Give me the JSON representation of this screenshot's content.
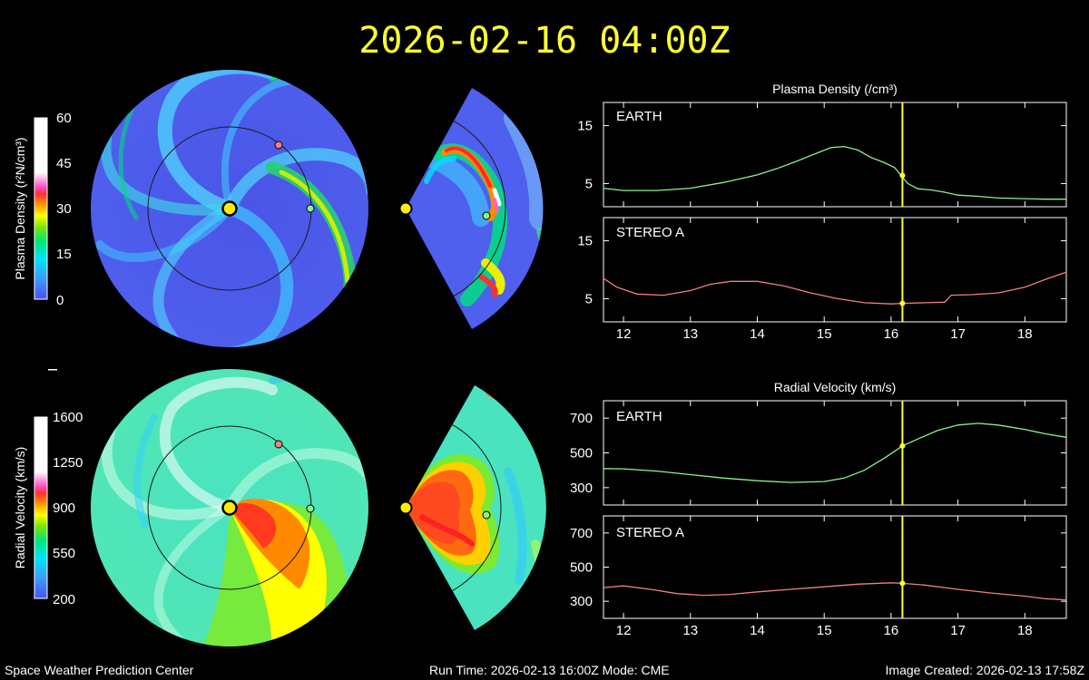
{
  "header": {
    "title": "2026-02-16 04:00Z"
  },
  "footer": {
    "center_name": "Space Weather Prediction Center",
    "run_time": "Run Time: 2026-02-13 16:00Z  Mode: CME",
    "image_created": "Image Created: 2026-02-13 17:58Z"
  },
  "colorbars": {
    "density": {
      "label": "Plasma Density (r²N/cm³)",
      "ticks": [
        "60",
        "45",
        "30",
        "15",
        "0"
      ]
    },
    "velocity": {
      "label": "Radial Velocity (km/s)",
      "ticks": [
        "1600",
        "1250",
        "900",
        "550",
        "200"
      ]
    }
  },
  "colors": {
    "earth_line": "#8cf28c",
    "stereo_line": "#f08080",
    "now_marker": "#ffff33",
    "title": "#ffff33"
  },
  "chart_data": [
    {
      "type": "line",
      "group_title": "Plasma Density (/cm³)",
      "panel_label": "EARTH",
      "x": [
        11.7,
        12.0,
        12.5,
        13.0,
        13.5,
        14.0,
        14.3,
        14.6,
        14.9,
        15.1,
        15.3,
        15.5,
        15.7,
        15.9,
        16.05,
        16.15,
        16.25,
        16.4,
        16.6,
        16.8,
        17.0,
        17.3,
        17.6,
        18.0,
        18.3,
        18.62
      ],
      "y": [
        4.2,
        3.8,
        3.8,
        4.2,
        5.2,
        6.5,
        7.6,
        8.9,
        10.3,
        11.2,
        11.4,
        10.8,
        9.5,
        8.6,
        7.8,
        6.4,
        5.0,
        4.1,
        3.9,
        3.5,
        3.0,
        2.8,
        2.5,
        2.4,
        2.3,
        2.3
      ],
      "yticks": [
        5,
        15
      ],
      "ylim": [
        1,
        19
      ],
      "xlim": [
        11.7,
        18.62
      ],
      "current_x": 16.17,
      "current_y": 6.4
    },
    {
      "type": "line",
      "panel_label": "STEREO A",
      "x": [
        11.7,
        11.9,
        12.2,
        12.6,
        13.0,
        13.3,
        13.6,
        14.0,
        14.4,
        14.8,
        15.2,
        15.6,
        16.0,
        16.17,
        16.5,
        16.8,
        16.9,
        17.2,
        17.6,
        18.0,
        18.3,
        18.62
      ],
      "y": [
        8.5,
        7.0,
        5.8,
        5.6,
        6.4,
        7.5,
        8.0,
        8.0,
        7.2,
        6.0,
        5.0,
        4.3,
        4.1,
        4.2,
        4.3,
        4.4,
        5.6,
        5.7,
        6.0,
        7.0,
        8.3,
        9.6
      ],
      "yticks": [
        5,
        15
      ],
      "ylim": [
        1,
        19
      ],
      "xlim": [
        11.7,
        18.62
      ],
      "current_x": 16.17,
      "current_y": 4.2
    },
    {
      "type": "line",
      "group_title": "Radial Velocity (km/s)",
      "panel_label": "EARTH",
      "x": [
        11.7,
        12.0,
        12.5,
        13.0,
        13.5,
        14.0,
        14.5,
        15.0,
        15.3,
        15.6,
        15.9,
        16.17,
        16.4,
        16.7,
        17.0,
        17.3,
        17.6,
        18.0,
        18.3,
        18.62
      ],
      "y": [
        410,
        408,
        395,
        375,
        355,
        340,
        330,
        335,
        355,
        400,
        470,
        540,
        580,
        630,
        660,
        670,
        660,
        635,
        610,
        590
      ],
      "yticks": [
        300,
        500,
        700
      ],
      "ylim": [
        200,
        800
      ],
      "xlim": [
        11.7,
        18.62
      ],
      "current_x": 16.17,
      "current_y": 540
    },
    {
      "type": "line",
      "panel_label": "STEREO A",
      "x": [
        11.7,
        12.0,
        12.4,
        12.8,
        13.2,
        13.6,
        14.0,
        14.5,
        15.0,
        15.5,
        16.0,
        16.17,
        16.5,
        17.0,
        17.5,
        18.0,
        18.3,
        18.62
      ],
      "y": [
        380,
        390,
        370,
        345,
        335,
        340,
        355,
        370,
        385,
        400,
        408,
        405,
        395,
        370,
        348,
        330,
        315,
        308
      ],
      "yticks": [
        300,
        500,
        700
      ],
      "ylim": [
        200,
        800
      ],
      "xlim": [
        11.7,
        18.62
      ],
      "current_x": 16.17,
      "current_y": 405
    }
  ],
  "xaxis": {
    "ticks": [
      "12",
      "13",
      "14",
      "15",
      "16",
      "17",
      "18"
    ]
  }
}
